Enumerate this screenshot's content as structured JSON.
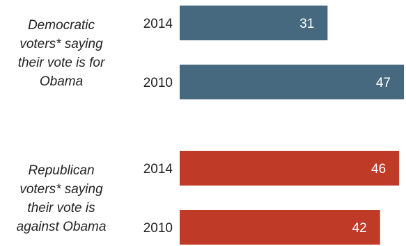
{
  "chart_data": {
    "type": "bar",
    "orientation": "horizontal",
    "xlim": [
      0,
      47
    ],
    "groups": [
      {
        "label_lines": [
          "Democratic",
          "voters* saying",
          "their vote is for",
          "Obama"
        ],
        "color": "#46697f",
        "bars": [
          {
            "category": "2014",
            "value": 31
          },
          {
            "category": "2010",
            "value": 47
          }
        ]
      },
      {
        "label_lines": [
          "Republican",
          "voters* saying",
          "their vote is",
          "against Obama"
        ],
        "color": "#bf3a27",
        "bars": [
          {
            "category": "2014",
            "value": 46
          },
          {
            "category": "2010",
            "value": 42
          }
        ]
      }
    ]
  }
}
